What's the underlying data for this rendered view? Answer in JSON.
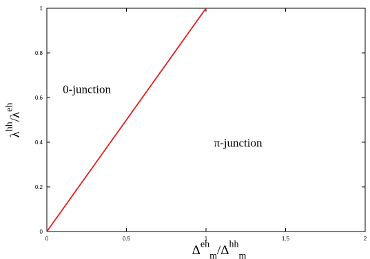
{
  "chart_data": {
    "type": "line",
    "title": "",
    "xlabel": {
      "base": "Δ",
      "sup1": "eh",
      "sub1": "m",
      "slash": "/",
      "base2": "Δ",
      "sup2": "hh",
      "sub2": "m"
    },
    "ylabel": {
      "base": "λ",
      "sup1": "hh",
      "slash": "/",
      "base2": "λ",
      "sup2": "eh"
    },
    "xlim": [
      0,
      2
    ],
    "ylim": [
      0,
      1
    ],
    "xticks": [
      {
        "value": 0,
        "label": "0"
      },
      {
        "value": 0.5,
        "label": "0.5"
      },
      {
        "value": 1,
        "label": "1"
      },
      {
        "value": 1.5,
        "label": "1.5"
      },
      {
        "value": 2,
        "label": "2"
      }
    ],
    "yticks": [
      {
        "value": 0,
        "label": "0"
      },
      {
        "value": 0.2,
        "label": "0.2"
      },
      {
        "value": 0.4,
        "label": "0.4"
      },
      {
        "value": 0.6,
        "label": "0.6"
      },
      {
        "value": 0.8,
        "label": "0.8"
      },
      {
        "value": 1,
        "label": "1"
      }
    ],
    "series": [
      {
        "x": [
          0,
          1
        ],
        "y": [
          0,
          1
        ],
        "color": "#e41a1c"
      }
    ],
    "annotations": [
      {
        "text": "0-junction",
        "x": 0.1,
        "y": 0.62
      },
      {
        "text": "π-junction",
        "x": 1.05,
        "y": 0.38
      }
    ],
    "grid": false
  }
}
